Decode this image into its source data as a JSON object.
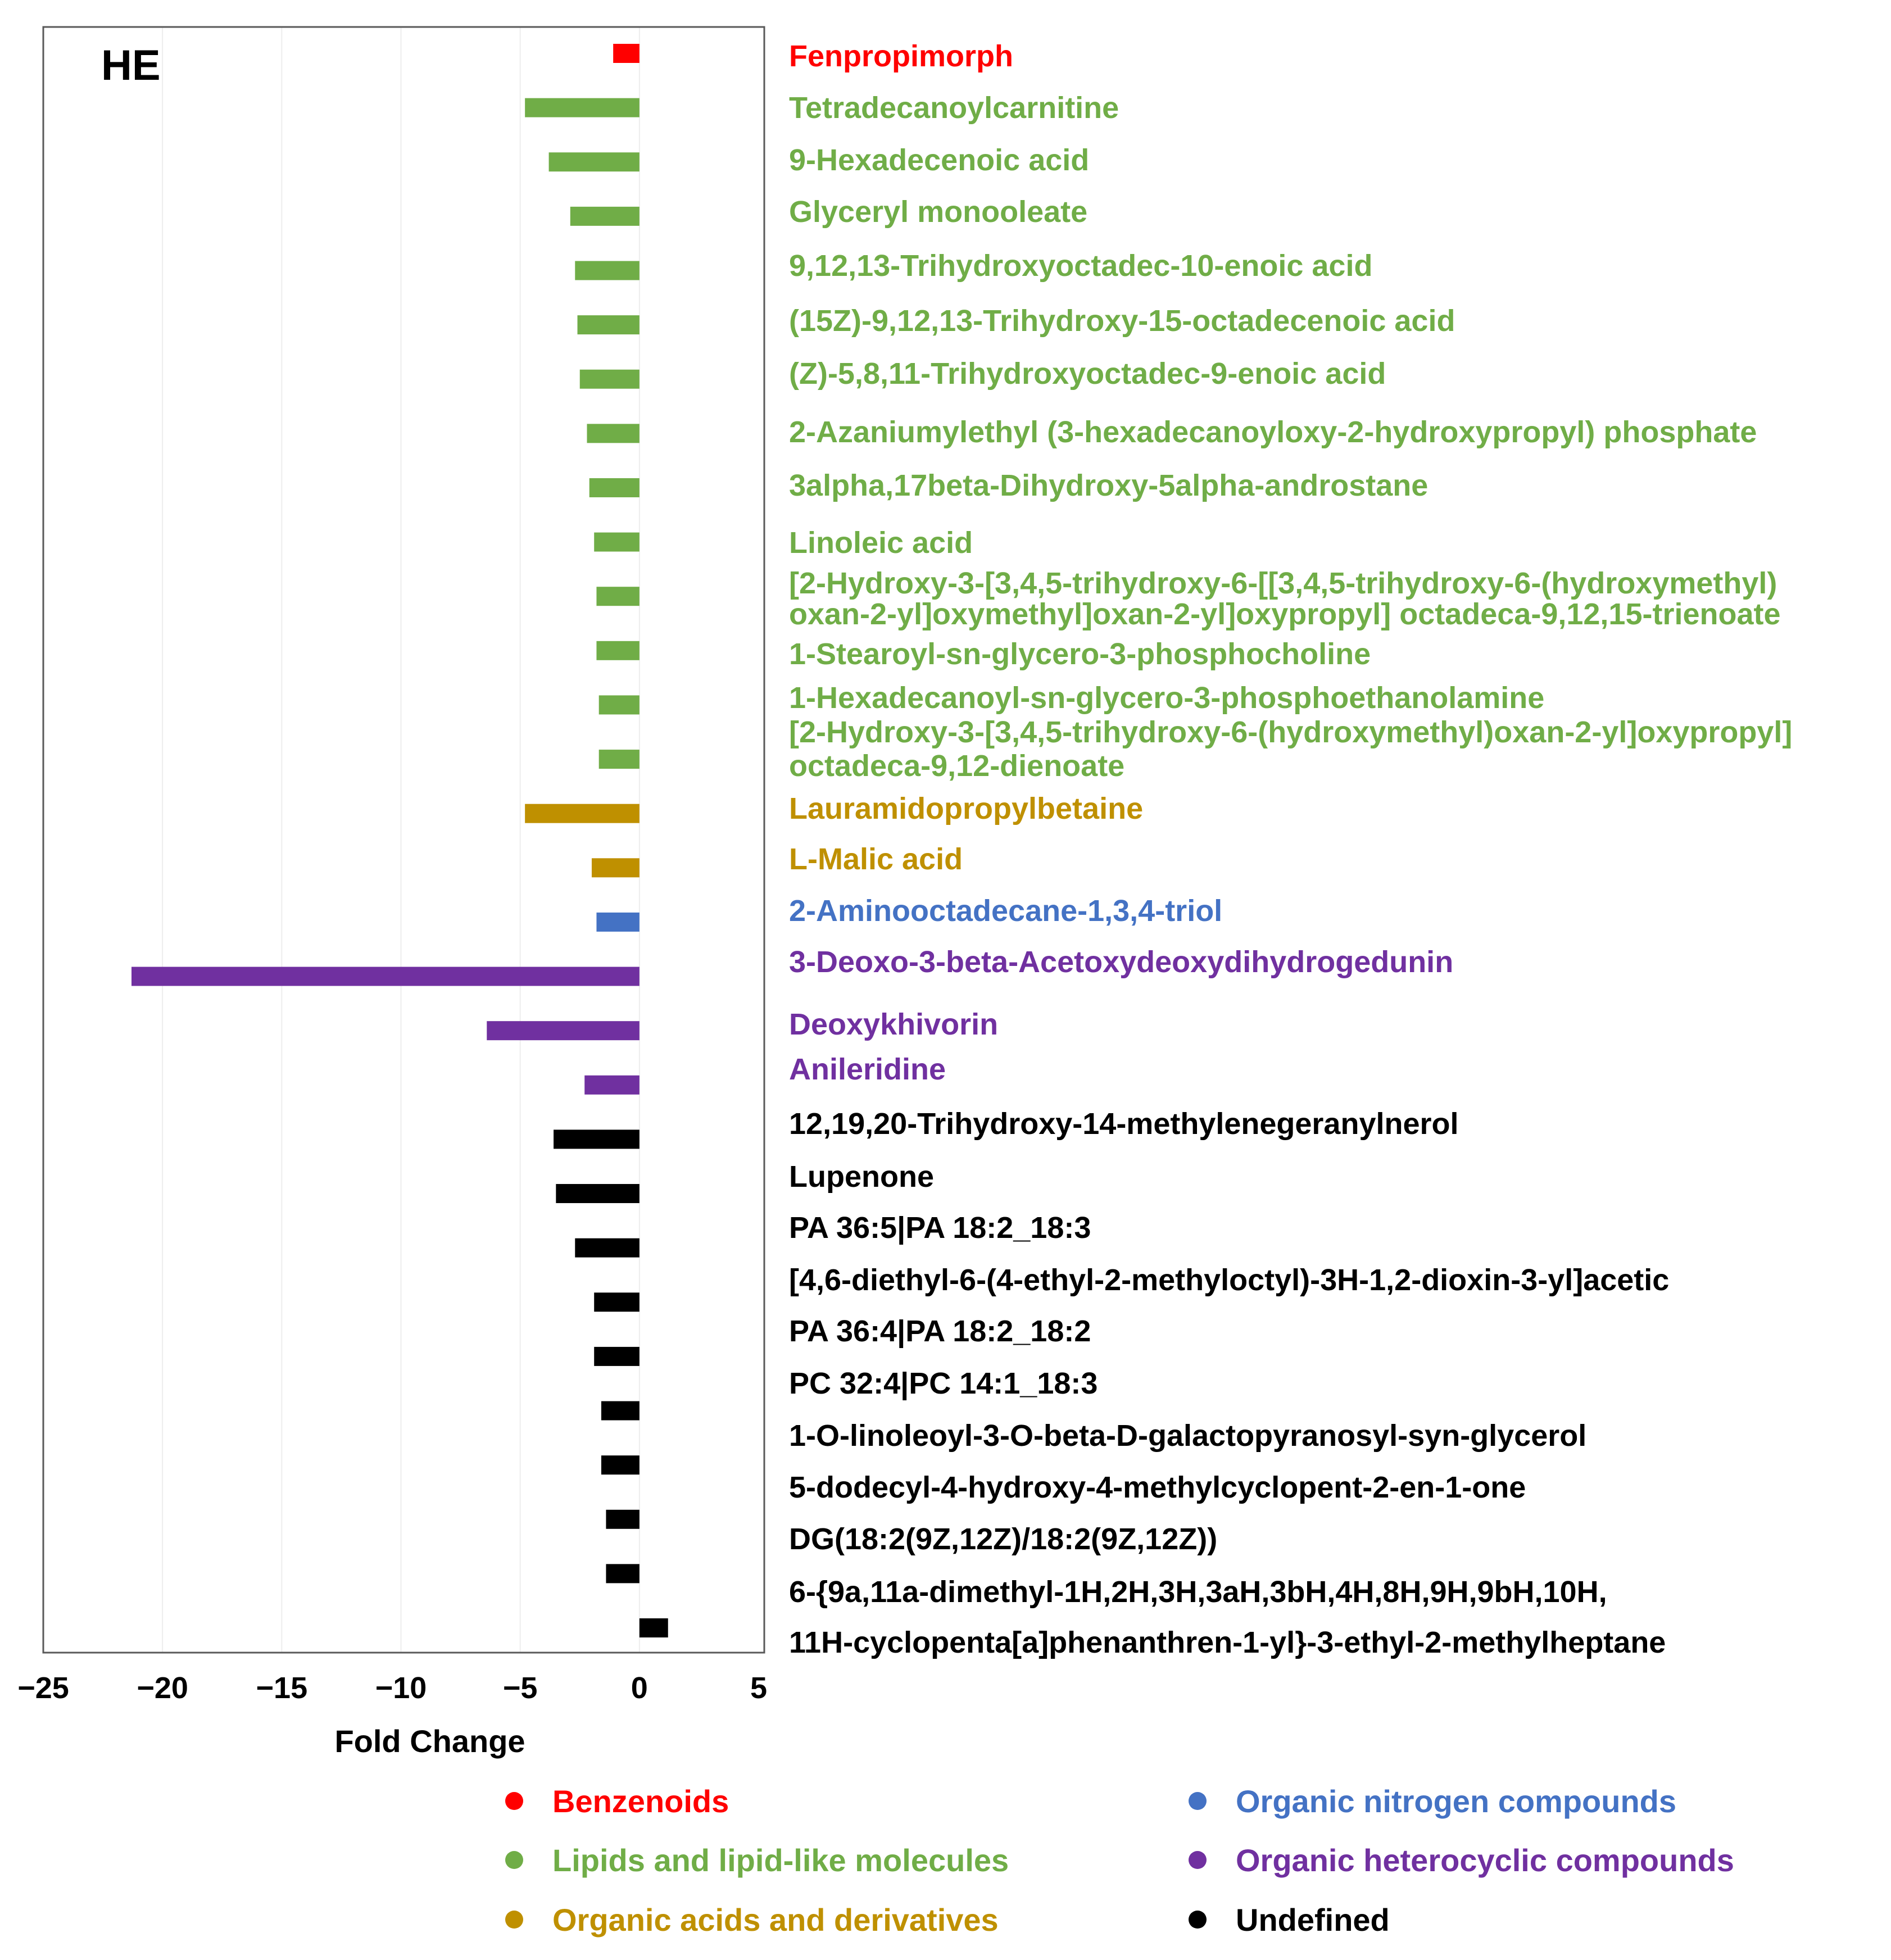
{
  "colors": {
    "benzenoids": "#FF0000",
    "lipids": "#70AD47",
    "acids": "#BF9000",
    "nitrogen": "#4472C4",
    "heterocyclic": "#7030A0",
    "undefined": "#000000"
  },
  "chart_data": {
    "type": "bar",
    "orientation": "horizontal",
    "title": "HE",
    "xlabel": "Fold Change",
    "ylabel": "",
    "xlim": [
      -25,
      5
    ],
    "xticks": [
      "−25",
      "−20",
      "−15",
      "−10",
      "−5",
      "0",
      "5"
    ],
    "grid": "vertical",
    "legend_position": "bottom",
    "legend": [
      {
        "label": "Benzenoids",
        "group": "benzenoids"
      },
      {
        "label": "Organic nitrogen compounds",
        "group": "nitrogen"
      },
      {
        "label": "Lipids and lipid-like molecules",
        "group": "lipids"
      },
      {
        "label": "Organic heterocyclic compounds",
        "group": "heterocyclic"
      },
      {
        "label": "Organic acids and derivatives",
        "group": "acids"
      },
      {
        "label": "Undefined",
        "group": "undefined"
      }
    ],
    "bars": [
      {
        "value": -1.1,
        "group": "benzenoids"
      },
      {
        "value": -4.8,
        "group": "lipids"
      },
      {
        "value": -3.8,
        "group": "lipids"
      },
      {
        "value": -2.9,
        "group": "lipids"
      },
      {
        "value": -2.7,
        "group": "lipids"
      },
      {
        "value": -2.6,
        "group": "lipids"
      },
      {
        "value": -2.5,
        "group": "lipids"
      },
      {
        "value": -2.2,
        "group": "lipids"
      },
      {
        "value": -2.1,
        "group": "lipids"
      },
      {
        "value": -1.9,
        "group": "lipids"
      },
      {
        "value": -1.8,
        "group": "lipids"
      },
      {
        "value": -1.8,
        "group": "lipids"
      },
      {
        "value": -1.7,
        "group": "lipids"
      },
      {
        "value": -1.7,
        "group": "lipids"
      },
      {
        "value": -4.8,
        "group": "acids"
      },
      {
        "value": -2.0,
        "group": "acids"
      },
      {
        "value": -1.8,
        "group": "nitrogen"
      },
      {
        "value": -21.3,
        "group": "heterocyclic"
      },
      {
        "value": -6.4,
        "group": "heterocyclic"
      },
      {
        "value": -2.3,
        "group": "heterocyclic"
      },
      {
        "value": -3.6,
        "group": "undefined"
      },
      {
        "value": -3.5,
        "group": "undefined"
      },
      {
        "value": -2.7,
        "group": "undefined"
      },
      {
        "value": -1.9,
        "group": "undefined"
      },
      {
        "value": -1.9,
        "group": "undefined"
      },
      {
        "value": -1.6,
        "group": "undefined"
      },
      {
        "value": -1.6,
        "group": "undefined"
      },
      {
        "value": -1.4,
        "group": "undefined"
      },
      {
        "value": -1.4,
        "group": "undefined"
      },
      {
        "value": 1.2,
        "group": "undefined"
      }
    ],
    "labels": [
      {
        "text": "Fenpropimorph",
        "group": "benzenoids"
      },
      {
        "text": "Tetradecanoylcarnitine",
        "group": "lipids"
      },
      {
        "text": "9-Hexadecenoic acid",
        "group": "lipids"
      },
      {
        "text": "Glyceryl monooleate",
        "group": "lipids"
      },
      {
        "text": "9,12,13-Trihydroxyoctadec-10-enoic acid",
        "group": "lipids"
      },
      {
        "text": "(15Z)-9,12,13-Trihydroxy-15-octadecenoic acid",
        "group": "lipids"
      },
      {
        "text": "(Z)-5,8,11-Trihydroxyoctadec-9-enoic acid",
        "group": "lipids"
      },
      {
        "text": "2-Azaniumylethyl (3-hexadecanoyloxy-2-hydroxypropyl) phosphate",
        "group": "lipids"
      },
      {
        "text": "3alpha,17beta-Dihydroxy-5alpha-androstane",
        "group": "lipids"
      },
      {
        "text": "Linoleic acid",
        "group": "lipids"
      },
      {
        "text": "[2-Hydroxy-3-[3,4,5-trihydroxy-6-[[3,4,5-trihydroxy-6-(hydroxymethyl)",
        "group": "lipids"
      },
      {
        "text": "oxan-2-yl]oxymethyl]oxan-2-yl]oxypropyl] octadeca-9,12,15-trienoate",
        "group": "lipids"
      },
      {
        "text": "1-Stearoyl-sn-glycero-3-phosphocholine",
        "group": "lipids"
      },
      {
        "text": "1-Hexadecanoyl-sn-glycero-3-phosphoethanolamine",
        "group": "lipids"
      },
      {
        "text": "[2-Hydroxy-3-[3,4,5-trihydroxy-6-(hydroxymethyl)oxan-2-yl]oxypropyl]",
        "group": "lipids"
      },
      {
        "text": "octadeca-9,12-dienoate",
        "group": "lipids"
      },
      {
        "text": "Lauramidopropylbetaine",
        "group": "acids"
      },
      {
        "text": "L-Malic acid",
        "group": "acids"
      },
      {
        "text": "2-Aminooctadecane-1,3,4-triol",
        "group": "nitrogen"
      },
      {
        "text": "3-Deoxo-3-beta-Acetoxydeoxydihydrogedunin",
        "group": "heterocyclic"
      },
      {
        "text": "Deoxykhivorin",
        "group": "heterocyclic"
      },
      {
        "text": "Anileridine",
        "group": "heterocyclic"
      },
      {
        "text": "12,19,20-Trihydroxy-14-methylenegeranylnerol",
        "group": "undefined"
      },
      {
        "text": "Lupenone",
        "group": "undefined"
      },
      {
        "text": "PA 36:5|PA 18:2_18:3",
        "group": "undefined"
      },
      {
        "text": "[4,6-diethyl-6-(4-ethyl-2-methyloctyl)-3H-1,2-dioxin-3-yl]acetic",
        "group": "undefined"
      },
      {
        "text": "PA 36:4|PA 18:2_18:2",
        "group": "undefined"
      },
      {
        "text": "PC 32:4|PC 14:1_18:3",
        "group": "undefined"
      },
      {
        "text": "1-O-linoleoyl-3-O-beta-D-galactopyranosyl-syn-glycerol",
        "group": "undefined"
      },
      {
        "text": "5-dodecyl-4-hydroxy-4-methylcyclopent-2-en-1-one",
        "group": "undefined"
      },
      {
        "text": "DG(18:2(9Z,12Z)/18:2(9Z,12Z))",
        "group": "undefined"
      },
      {
        "text": "6-{9a,11a-dimethyl-1H,2H,3H,3aH,3bH,4H,8H,9H,9bH,10H,",
        "group": "undefined"
      },
      {
        "text": "11H-cyclopenta[a]phenanthren-1-yl}-3-ethyl-2-methylheptane",
        "group": "undefined"
      }
    ]
  }
}
